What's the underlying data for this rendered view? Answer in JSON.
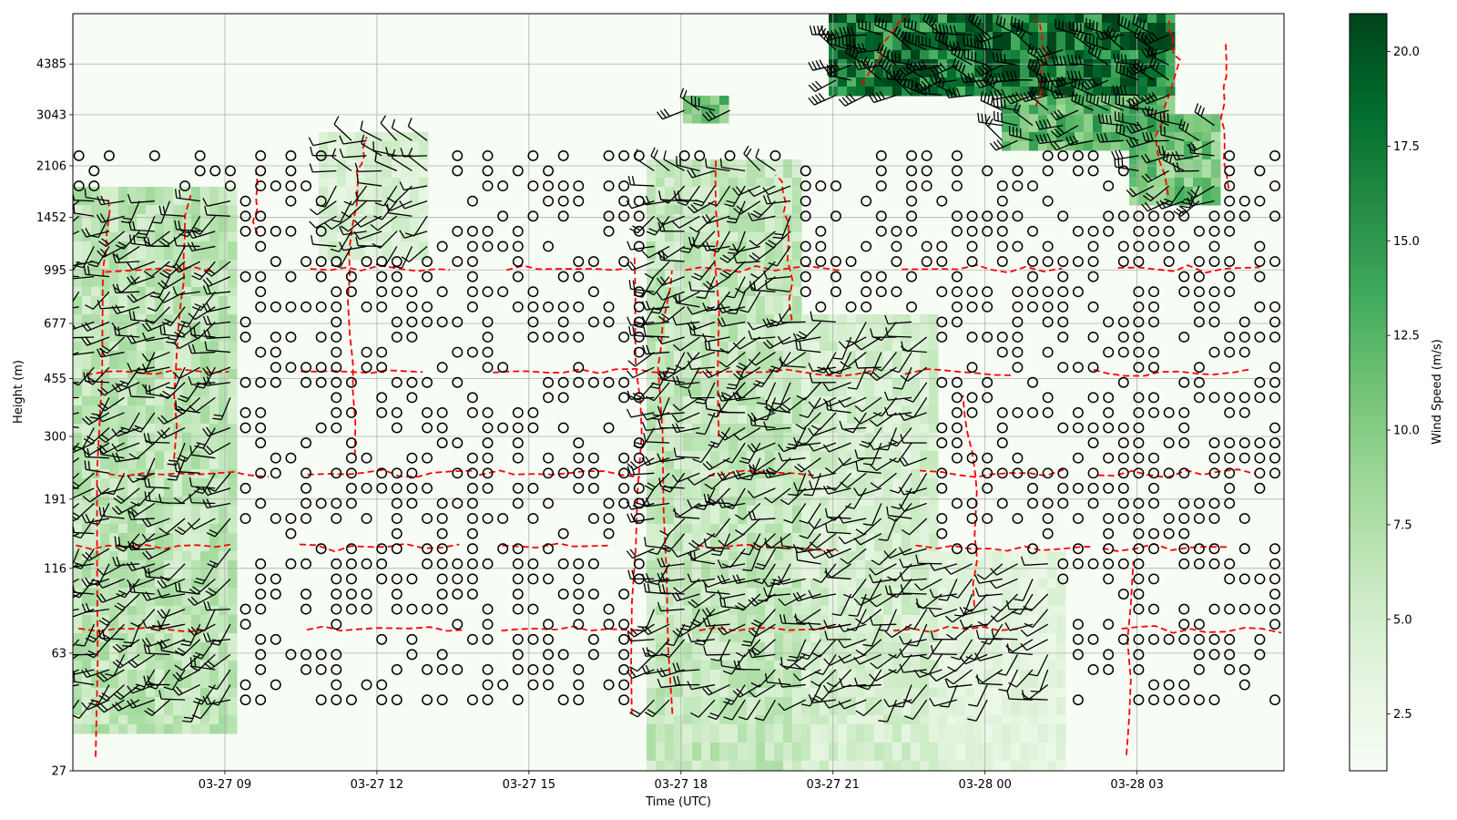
{
  "chart_data": {
    "type": "heatmap",
    "xlabel": "Time (UTC)",
    "ylabel": "Height (m)",
    "colorbar_label": "Wind Speed (m/s)",
    "colormap": "Greens",
    "grid": true,
    "x_tick_labels": [
      "03-27 09",
      "03-27 12",
      "03-27 15",
      "03-27 18",
      "03-27 21",
      "03-28 00",
      "03-28 03"
    ],
    "x_tick_hours": [
      9,
      12,
      15,
      18,
      21,
      24,
      27
    ],
    "xlim_hours": [
      6.0,
      29.9
    ],
    "y_scale": "log",
    "y_tick_labels": [
      "27",
      "63",
      "116",
      "191",
      "300",
      "455",
      "677",
      "995",
      "1452",
      "2106",
      "3043",
      "4385"
    ],
    "y_tick_values": [
      27,
      63,
      116,
      191,
      300,
      455,
      677,
      995,
      1452,
      2106,
      3043,
      4385
    ],
    "ylim": [
      27,
      6300
    ],
    "colorbar_ticks": [
      "2.5",
      "5.0",
      "7.5",
      "10.0",
      "12.5",
      "15.0",
      "17.5",
      "20.0"
    ],
    "colorbar_tick_values": [
      2.5,
      5.0,
      7.5,
      10.0,
      12.5,
      15.0,
      17.5,
      20.0
    ],
    "colorbar_range": [
      1.0,
      21.0
    ],
    "colors": {
      "cmap_low": "#f7fcf5",
      "cmap_mid": "#74c476",
      "cmap_high": "#00441b",
      "contour": "#ff0000",
      "barb": "#000000"
    },
    "wind_regions": [
      {
        "hours": [
          6.0,
          9.2
        ],
        "heights": [
          35,
          1800
        ],
        "speed": 6.5
      },
      {
        "hours": [
          10.9,
          13.0
        ],
        "heights": [
          1100,
          2600
        ],
        "speed": 4.5
      },
      {
        "hours": [
          17.3,
          20.4
        ],
        "heights": [
          27,
          2200
        ],
        "speed": 6.0
      },
      {
        "hours": [
          20.4,
          23.0
        ],
        "heights": [
          27,
          700
        ],
        "speed": 4.8
      },
      {
        "hours": [
          23.0,
          25.5
        ],
        "heights": [
          27,
          130
        ],
        "speed": 3.5
      },
      {
        "hours": [
          18.0,
          19.0
        ],
        "heights": [
          2900,
          3500
        ],
        "speed": 11.0
      },
      {
        "hours": [
          21.0,
          27.8
        ],
        "heights": [
          3500,
          6300
        ],
        "speed": 17.5
      },
      {
        "hours": [
          24.3,
          27.8
        ],
        "heights": [
          2300,
          3500
        ],
        "speed": 12.0
      },
      {
        "hours": [
          26.8,
          28.7
        ],
        "heights": [
          1600,
          3000
        ],
        "speed": 10.5
      }
    ]
  }
}
